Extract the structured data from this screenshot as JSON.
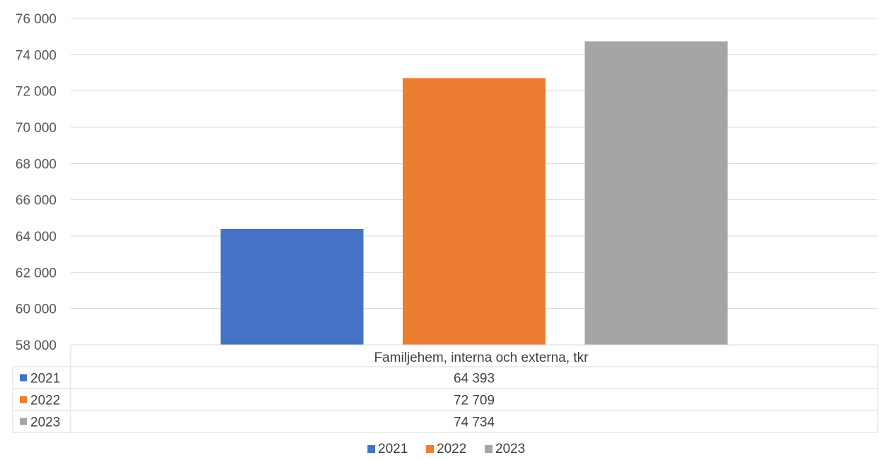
{
  "chart_data": {
    "type": "bar",
    "categories": [
      "Familjehem, interna och externa, tkr"
    ],
    "series": [
      {
        "name": "2021",
        "values": [
          64393
        ],
        "value_label": "64 393",
        "color": "#4472c4"
      },
      {
        "name": "2022",
        "values": [
          72709
        ],
        "value_label": "72 709",
        "color": "#ed7d31"
      },
      {
        "name": "2023",
        "values": [
          74734
        ],
        "value_label": "74 734",
        "color": "#a5a5a5"
      }
    ],
    "ylim": [
      58000,
      76000
    ],
    "ytick_step": 2000,
    "yticks": [
      "58 000",
      "60 000",
      "62 000",
      "64 000",
      "66 000",
      "68 000",
      "70 000",
      "72 000",
      "74 000",
      "76 000"
    ],
    "grid": true,
    "data_table": true,
    "legend_position": "bottom"
  }
}
